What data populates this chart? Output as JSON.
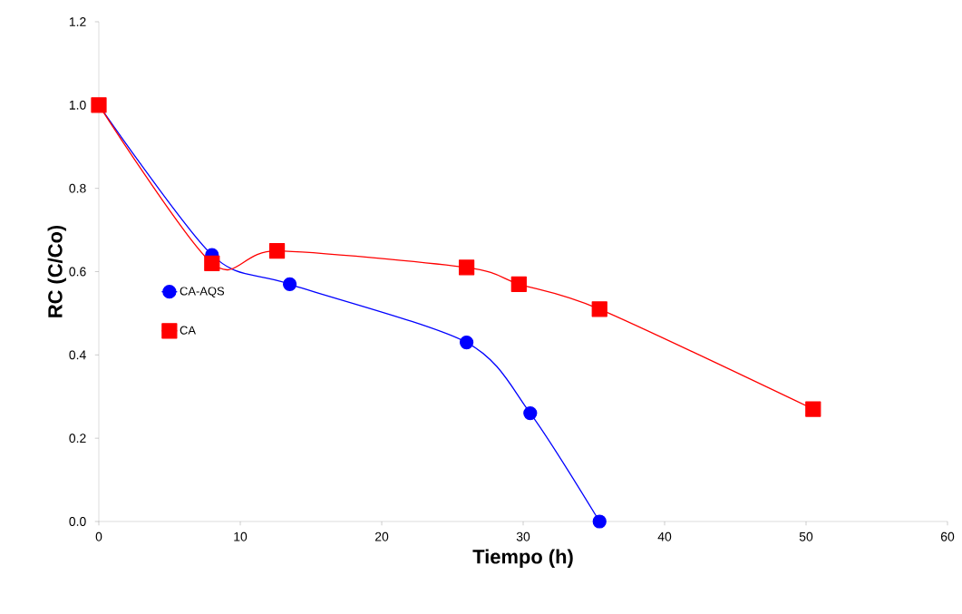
{
  "chart_data": {
    "type": "line",
    "xlabel": "Tiempo  (h)",
    "ylabel": "RC (C/Co)",
    "xlim": [
      0,
      60
    ],
    "xticks": [
      0,
      10,
      20,
      30,
      40,
      50,
      60
    ],
    "ylim": [
      0,
      1.2
    ],
    "yticks": [
      {
        "value": 0,
        "label": "0.0"
      },
      {
        "value": 0.2,
        "label": "0.2"
      },
      {
        "value": 0.4,
        "label": "0.4"
      },
      {
        "value": 0.6,
        "label": "0.6"
      },
      {
        "value": 0.8,
        "label": "0.8"
      },
      {
        "value": 1.0,
        "label": "1.0"
      },
      {
        "value": 1.2,
        "label": "1.2"
      }
    ],
    "grid": false,
    "legend": "left",
    "series": [
      {
        "name": "CA-AQS",
        "color": "#0000ff",
        "marker": "circle",
        "x": [
          0,
          8,
          13.5,
          26,
          30.5,
          35.4
        ],
        "values": [
          1.0,
          0.64,
          0.57,
          0.43,
          0.26,
          0.0
        ]
      },
      {
        "name": "CA",
        "color": "#ff0000",
        "marker": "square",
        "x": [
          0,
          8,
          12.6,
          26,
          29.7,
          35.4,
          50.5
        ],
        "values": [
          1.0,
          0.62,
          0.65,
          0.61,
          0.57,
          0.51,
          0.27
        ]
      }
    ]
  }
}
